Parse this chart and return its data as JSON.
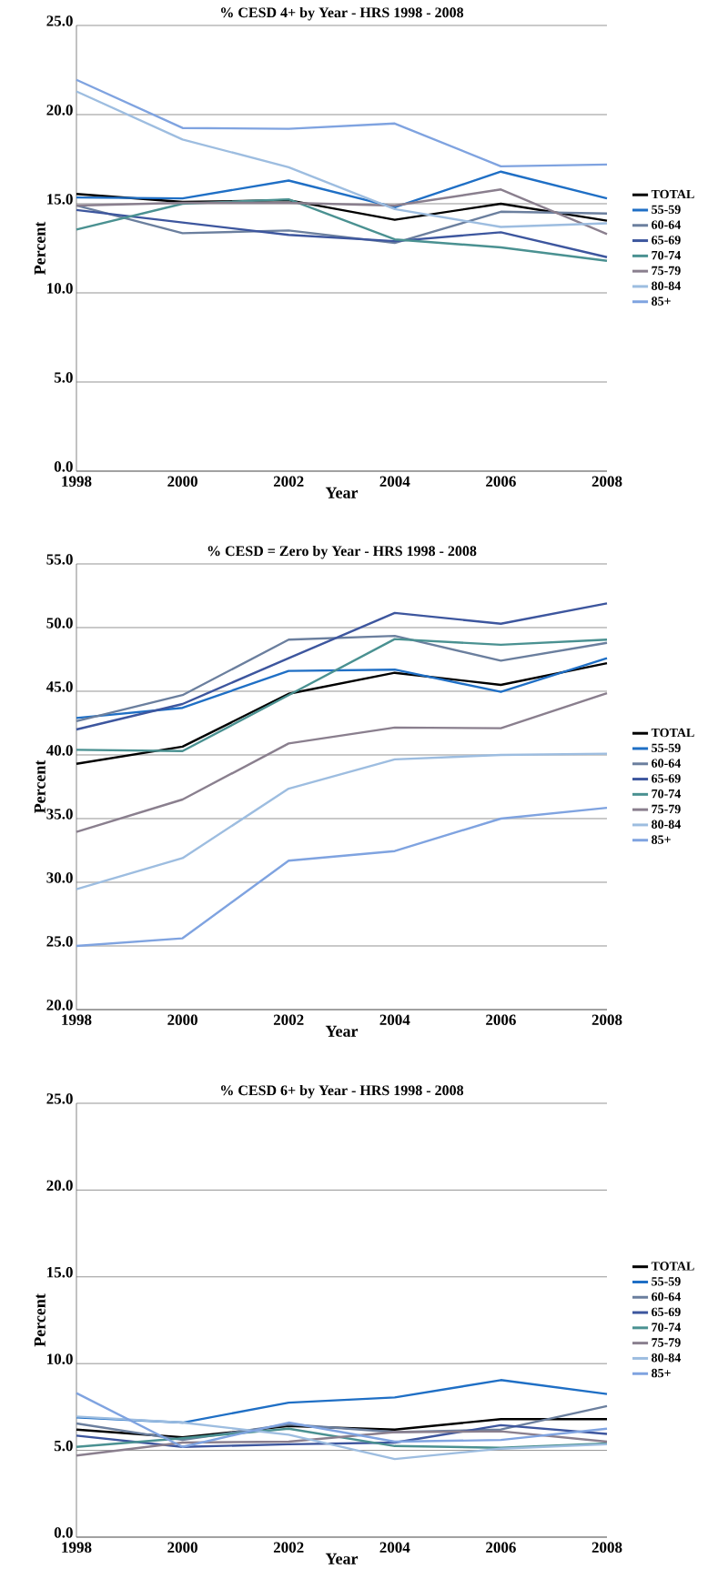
{
  "chart_data": [
    {
      "type": "line",
      "title": "% CESD 4+ by Year - HRS 1998 - 2008",
      "xlabel": "Year",
      "ylabel": "Percent",
      "x": [
        1998,
        2000,
        2002,
        2004,
        2006,
        2008
      ],
      "xlim": [
        1998,
        2008
      ],
      "xticks": [
        1998,
        2000,
        2002,
        2004,
        2006,
        2008
      ],
      "ylim": [
        0,
        25
      ],
      "yticks": [
        {
          "value": 0,
          "label": "0.0"
        },
        {
          "value": 5,
          "label": "5.0"
        },
        {
          "value": 10,
          "label": "10.0"
        },
        {
          "value": 15,
          "label": "15.0"
        },
        {
          "value": 20,
          "label": "20.0"
        },
        {
          "value": 25,
          "label": "25.0"
        }
      ],
      "grid": "y",
      "legend": "right",
      "series": [
        {
          "name": "TOTAL",
          "color": "#000000",
          "values": [
            15.55,
            15.1,
            15.2,
            14.1,
            15.0,
            14.05
          ]
        },
        {
          "name": "55-59",
          "color": "#1f6fc5",
          "values": [
            15.35,
            15.3,
            16.3,
            14.8,
            16.8,
            15.3
          ]
        },
        {
          "name": "60-64",
          "color": "#6b7f9e",
          "values": [
            14.9,
            13.35,
            13.5,
            12.8,
            14.55,
            14.45
          ]
        },
        {
          "name": "65-69",
          "color": "#3d569e",
          "values": [
            14.65,
            13.95,
            13.25,
            12.9,
            13.4,
            12.0
          ]
        },
        {
          "name": "70-74",
          "color": "#4a9191",
          "values": [
            13.55,
            15.0,
            15.25,
            13.0,
            12.55,
            11.8
          ]
        },
        {
          "name": "75-79",
          "color": "#8a7f8e",
          "values": [
            14.9,
            15.05,
            15.05,
            14.9,
            15.8,
            13.3
          ]
        },
        {
          "name": "80-84",
          "color": "#9dbde0",
          "values": [
            21.3,
            18.6,
            17.05,
            14.7,
            13.7,
            13.9
          ]
        },
        {
          "name": "85+",
          "color": "#7fa3e0",
          "values": [
            21.95,
            19.25,
            19.2,
            19.5,
            17.1,
            17.2
          ]
        }
      ]
    },
    {
      "type": "line",
      "title": "% CESD = Zero by Year - HRS 1998 - 2008",
      "xlabel": "Year",
      "ylabel": "Percent",
      "x": [
        1998,
        2000,
        2002,
        2004,
        2006,
        2008
      ],
      "xlim": [
        1998,
        2008
      ],
      "xticks": [
        1998,
        2000,
        2002,
        2004,
        2006,
        2008
      ],
      "ylim": [
        20,
        55
      ],
      "yticks": [
        {
          "value": 20,
          "label": "20.0"
        },
        {
          "value": 25,
          "label": "25.0"
        },
        {
          "value": 30,
          "label": "30.0"
        },
        {
          "value": 35,
          "label": "35.0"
        },
        {
          "value": 40,
          "label": "40.0"
        },
        {
          "value": 45,
          "label": "45.0"
        },
        {
          "value": 50,
          "label": "50.0"
        },
        {
          "value": 55,
          "label": "55.0"
        }
      ],
      "grid": "y",
      "legend": "right",
      "series": [
        {
          "name": "TOTAL",
          "color": "#000000",
          "values": [
            39.3,
            40.65,
            44.8,
            46.45,
            45.5,
            47.2
          ]
        },
        {
          "name": "55-59",
          "color": "#1f6fc5",
          "values": [
            42.9,
            43.7,
            46.6,
            46.7,
            44.95,
            47.6
          ]
        },
        {
          "name": "60-64",
          "color": "#6b7f9e",
          "values": [
            42.65,
            44.7,
            49.05,
            49.35,
            47.4,
            48.8
          ]
        },
        {
          "name": "65-69",
          "color": "#3d569e",
          "values": [
            42.0,
            44.0,
            47.6,
            51.15,
            50.3,
            51.9
          ]
        },
        {
          "name": "70-74",
          "color": "#4a9191",
          "values": [
            40.4,
            40.3,
            44.7,
            49.1,
            48.65,
            49.05
          ]
        },
        {
          "name": "75-79",
          "color": "#8a7f8e",
          "values": [
            33.95,
            36.5,
            40.9,
            42.15,
            42.1,
            44.85
          ]
        },
        {
          "name": "80-84",
          "color": "#9dbde0",
          "values": [
            29.45,
            31.9,
            37.35,
            39.65,
            40.0,
            40.1
          ]
        },
        {
          "name": "85+",
          "color": "#7fa3e0",
          "values": [
            25.0,
            25.6,
            31.7,
            32.45,
            35.0,
            35.85
          ]
        }
      ]
    },
    {
      "type": "line",
      "title": "% CESD 6+ by Year - HRS 1998 - 2008",
      "xlabel": "Year",
      "ylabel": "Percent",
      "x": [
        1998,
        2000,
        2002,
        2004,
        2006,
        2008
      ],
      "xlim": [
        1998,
        2008
      ],
      "xticks": [
        1998,
        2000,
        2002,
        2004,
        2006,
        2008
      ],
      "ylim": [
        0,
        25
      ],
      "yticks": [
        {
          "value": 0,
          "label": "0.0"
        },
        {
          "value": 5,
          "label": "5.0"
        },
        {
          "value": 10,
          "label": "10.0"
        },
        {
          "value": 15,
          "label": "15.0"
        },
        {
          "value": 20,
          "label": "20.0"
        },
        {
          "value": 25,
          "label": "25.0"
        }
      ],
      "grid": "y",
      "legend": "right",
      "series": [
        {
          "name": "TOTAL",
          "color": "#000000",
          "values": [
            6.2,
            5.75,
            6.4,
            6.2,
            6.8,
            6.8
          ]
        },
        {
          "name": "55-59",
          "color": "#1f6fc5",
          "values": [
            6.9,
            6.6,
            7.75,
            8.05,
            9.05,
            8.25
          ]
        },
        {
          "name": "60-64",
          "color": "#6b7f9e",
          "values": [
            6.55,
            5.6,
            6.5,
            6.05,
            6.2,
            7.55
          ]
        },
        {
          "name": "65-69",
          "color": "#3d569e",
          "values": [
            5.85,
            5.2,
            5.35,
            5.45,
            6.45,
            5.95
          ]
        },
        {
          "name": "70-74",
          "color": "#4a9191",
          "values": [
            5.2,
            5.7,
            6.25,
            5.25,
            5.15,
            5.4
          ]
        },
        {
          "name": "75-79",
          "color": "#8a7f8e",
          "values": [
            4.7,
            5.45,
            5.5,
            6.05,
            6.1,
            5.5
          ]
        },
        {
          "name": "80-84",
          "color": "#9dbde0",
          "values": [
            6.95,
            6.6,
            5.9,
            4.5,
            5.1,
            5.35
          ]
        },
        {
          "name": "85+",
          "color": "#7fa3e0",
          "values": [
            8.3,
            5.2,
            6.6,
            5.5,
            5.6,
            6.25
          ]
        }
      ]
    }
  ]
}
